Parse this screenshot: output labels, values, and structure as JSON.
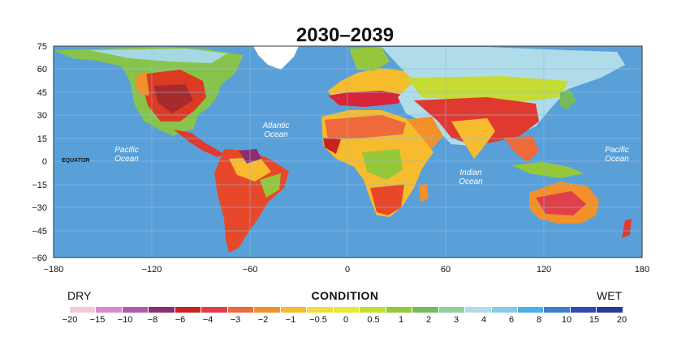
{
  "title": "2030–2039",
  "map": {
    "x_ticks": [
      "−180",
      "−120",
      "−60",
      "0",
      "60",
      "120",
      "180"
    ],
    "y_ticks": [
      "75",
      "60",
      "45",
      "30",
      "15",
      "0",
      "−15",
      "−30",
      "−45",
      "−60"
    ],
    "equator_label": "EQUATOR",
    "oceans": [
      {
        "line1": "Pacific",
        "line2": "Ocean"
      },
      {
        "line1": "Atlantic",
        "line2": "Ocean"
      },
      {
        "line1": "Indian",
        "line2": "Ocean"
      },
      {
        "line1": "Pacific",
        "line2": "Ocean"
      }
    ],
    "colors": {
      "ocean": "#5aa0d8",
      "grid": "#8fbde4"
    }
  },
  "legend": {
    "dry_label": "DRY",
    "wet_label": "WET",
    "title": "CONDITION",
    "ticks": [
      "−20",
      "−15",
      "−10",
      "−8",
      "−6",
      "−4",
      "−3",
      "−2",
      "−1",
      "−0.5",
      "0",
      "0.5",
      "1",
      "2",
      "3",
      "4",
      "6",
      "8",
      "10",
      "15",
      "20"
    ],
    "colors": [
      "#f6c8dc",
      "#d98ac6",
      "#b05aa8",
      "#8a2e6e",
      "#c8231e",
      "#e0404a",
      "#ee6a3a",
      "#f2902a",
      "#f6bc2e",
      "#f2dc3c",
      "#e6e832",
      "#c6dc32",
      "#94c83a",
      "#74bc5a",
      "#8ed09a",
      "#b0dcea",
      "#86cce4",
      "#4cb0e6",
      "#3a80cc",
      "#2e4cae",
      "#263a96"
    ]
  }
}
